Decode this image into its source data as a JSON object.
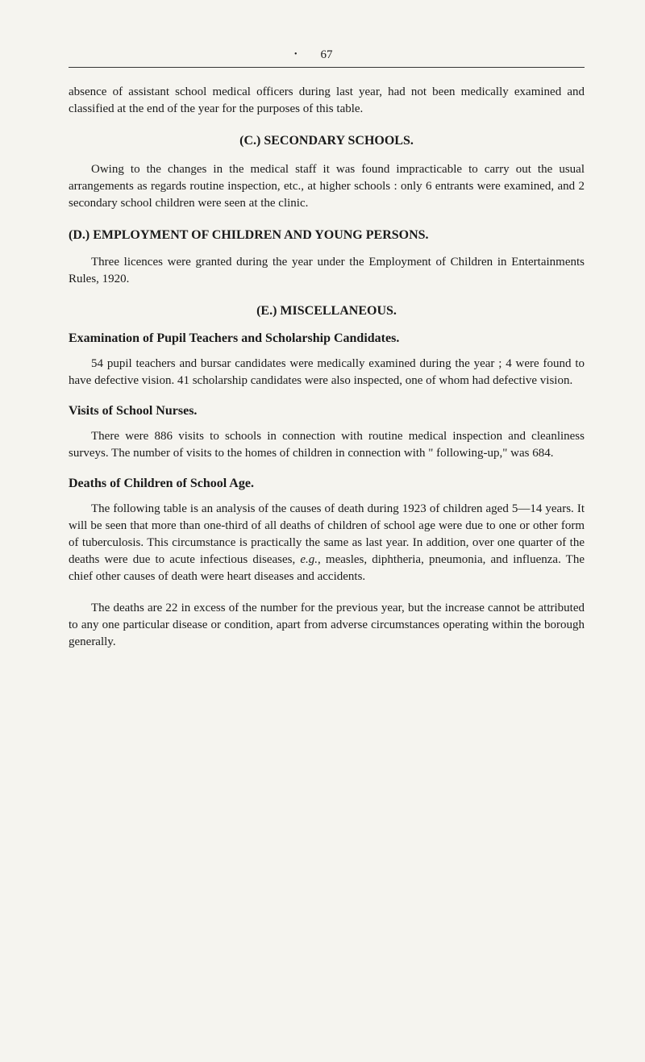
{
  "pageNumber": "67",
  "para1": "absence of assistant school medical officers during last year, had not been medically examined and classified at the end of the year for the purposes of this table.",
  "headingC": "(C.) SECONDARY SCHOOLS.",
  "paraC1": "Owing to the changes in the medical staff it was found im­practicable to carry out the usual arrangements as regards routine inspection, etc., at higher schools : only 6 entrants were examined, and 2 secondary school children were seen at the clinic.",
  "headingD": "(D.) EMPLOYMENT OF CHILDREN AND YOUNG PERSONS.",
  "paraD1": "Three licences were granted during the year under the Em­ployment of Children in Entertainments Rules, 1920.",
  "headingE": "(E.) MISCELLANEOUS.",
  "subheadingExam": "Examination of Pupil Teachers and Scholarship Candidates.",
  "paraExam": "54 pupil teachers and bursar candidates were medically examined during the year ; 4 were found to have defective vision. 41 scholarship candidates were also inspected, one of whom had defective vision.",
  "subheadingVisits": "Visits of School Nurses.",
  "paraVisits": "There were 886 visits to schools in connection with routine medical inspection and cleanliness surveys. The number of visits to the homes of children in connection with \" following-up,\" was 684.",
  "subheadingDeaths": "Deaths of Children of School Age.",
  "paraDeaths1a": "The following table is an analysis of the causes of death during 1923 of children aged 5—14 years. It will be seen that more than one-third of all deaths of children of school age were due to one or other form of tuberculosis. This circumstance is practically the same as last year. In addition, over one quarter of the deaths were due to acute infectious diseases, ",
  "paraDeaths1b": "e.g.",
  "paraDeaths1c": ", measles, diphtheria, pneumonia, and influenza. The chief other causes of death were heart diseases and accidents.",
  "paraDeaths2": "The deaths are 22 in excess of the number for the previous year, but the increase cannot be attributed to any one particular disease or condition, apart from adverse circumstances operating within the borough generally."
}
